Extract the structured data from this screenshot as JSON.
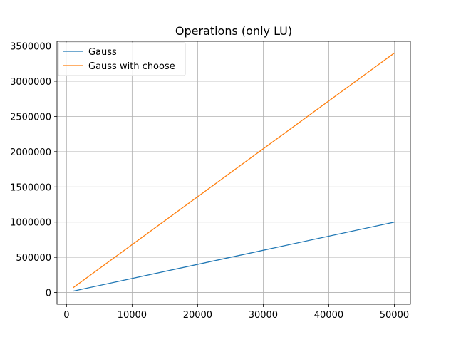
{
  "chart_data": {
    "type": "line",
    "title": "Operations (only LU)",
    "xlabel": "",
    "ylabel": "",
    "xlim": [
      -1450,
      52450
    ],
    "ylim": [
      -166000,
      3566000
    ],
    "grid": true,
    "legend_position": "top-left",
    "x_ticks": [
      0,
      10000,
      20000,
      30000,
      40000,
      50000
    ],
    "x_tick_labels": [
      "0",
      "10000",
      "20000",
      "30000",
      "40000",
      "50000"
    ],
    "y_ticks": [
      0,
      500000,
      1000000,
      1500000,
      2000000,
      2500000,
      3000000,
      3500000
    ],
    "y_tick_labels": [
      "0",
      "500000",
      "1000000",
      "1500000",
      "2000000",
      "2500000",
      "3000000",
      "3500000"
    ],
    "x": [
      1000,
      50000
    ],
    "series": [
      {
        "name": "Gauss",
        "color": "#1f77b4",
        "values": [
          20000,
          1000000
        ]
      },
      {
        "name": "Gauss with choose",
        "color": "#ff7f0e",
        "values": [
          68000,
          3400000
        ]
      }
    ]
  }
}
